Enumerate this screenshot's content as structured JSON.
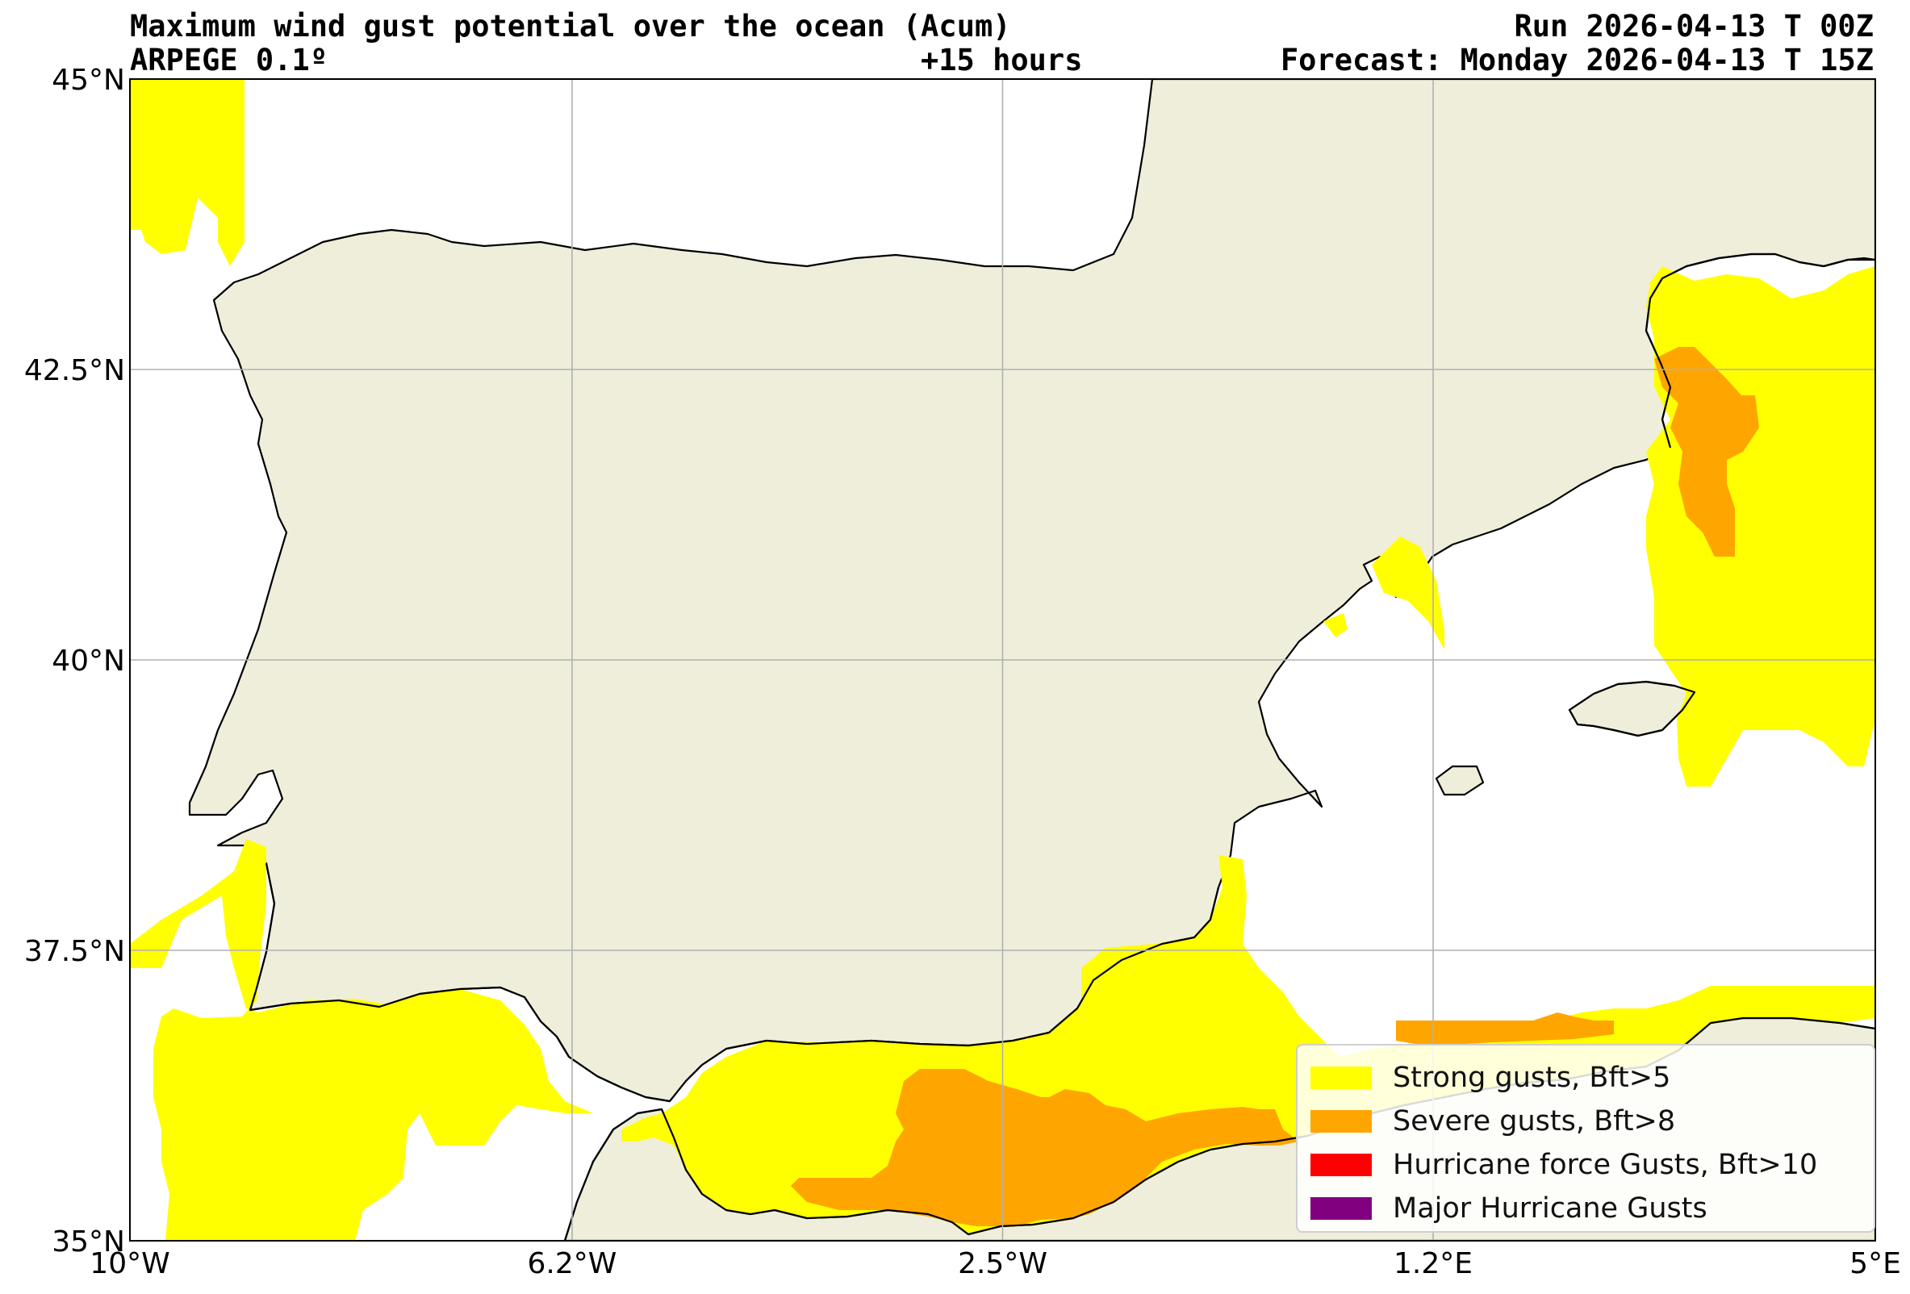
{
  "header": {
    "title": "Maximum wind gust potential over the ocean (Acum)",
    "run": "Run 2026-04-13 T 00Z",
    "model": "ARPEGE 0.1º",
    "lead": "+15 hours",
    "forecast": "Forecast: Monday 2026-04-13 T 15Z"
  },
  "map": {
    "extent": {
      "lon_min": -10,
      "lon_max": 5,
      "lat_min": 35,
      "lat_max": 45
    },
    "x_ticks": [
      {
        "lon": -10,
        "label": "10°W"
      },
      {
        "lon": -6.2,
        "label": "6.2°W"
      },
      {
        "lon": -2.5,
        "label": "2.5°W"
      },
      {
        "lon": 1.2,
        "label": "1.2°E"
      },
      {
        "lon": 5,
        "label": "5°E"
      }
    ],
    "y_ticks": [
      {
        "lat": 45,
        "label": "45°N"
      },
      {
        "lat": 42.5,
        "label": "42.5°N"
      },
      {
        "lat": 40,
        "label": "40°N"
      },
      {
        "lat": 37.5,
        "label": "37.5°N"
      },
      {
        "lat": 35,
        "label": "35°N"
      }
    ],
    "gridlines": true,
    "colors": {
      "land": "#efeedb",
      "sea": "#ffffff",
      "coast": "#000000",
      "grid": "#b0b0b0"
    }
  },
  "legend": {
    "placement": "bottom-right",
    "items": [
      {
        "label": "Strong gusts, Bft>5",
        "color": "#ffff00"
      },
      {
        "label": "Severe gusts, Bft>8",
        "color": "#ffa500"
      },
      {
        "label": "Hurricane force Gusts, Bft>10",
        "color": "#ff0000"
      },
      {
        "label": "Major Hurricane Gusts",
        "color": "#800080"
      }
    ]
  }
}
